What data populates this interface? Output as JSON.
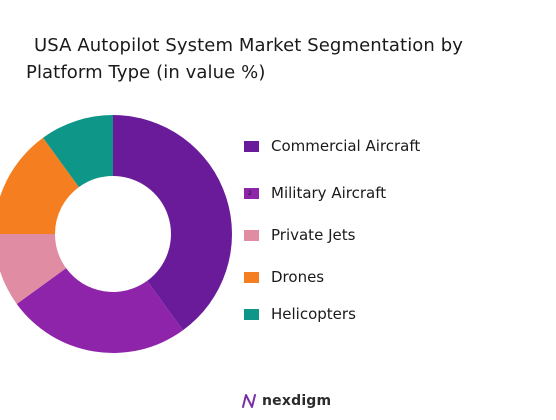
{
  "title_line1": "USA Autopilot System Market Segmentation by",
  "title_line2": "Platform Type (in value %)",
  "chart_data": {
    "type": "pie",
    "title": "USA Autopilot System Market Segmentation by Platform Type (in value %)",
    "donut": true,
    "start": "top",
    "direction": "clockwise",
    "legend_position": "right",
    "series": [
      {
        "name": "Commercial Aircraft",
        "value": 40,
        "color": "#6a1b9a"
      },
      {
        "name": "Military Aircraft",
        "value": 25,
        "color": "#8e24aa"
      },
      {
        "name": "Private Jets",
        "value": 10,
        "color": "#e08ca2"
      },
      {
        "name": "Drones",
        "value": 15,
        "color": "#f57f20"
      },
      {
        "name": "Helicopters",
        "value": 10,
        "color": "#0e9688"
      }
    ],
    "legend_marks": [
      "",
      "2",
      "",
      "",
      ""
    ]
  },
  "logo": {
    "text": "nexdigm",
    "icon": "nexdigm-logo-icon"
  }
}
